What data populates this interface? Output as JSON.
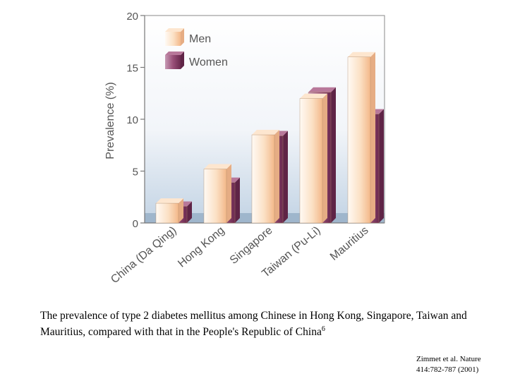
{
  "chart_data": {
    "type": "bar",
    "title": "",
    "xlabel": "",
    "ylabel": "Prevalence (%)",
    "ylim": [
      0,
      20
    ],
    "yticks": [
      0,
      5,
      10,
      15,
      20
    ],
    "categories": [
      "China (Da Qing)",
      "Hong Kong",
      "Singapore",
      "Taiwan (Pu-Li)",
      "Mauritius"
    ],
    "series": [
      {
        "name": "Men",
        "values": [
          1.9,
          5.2,
          8.5,
          12.0,
          16.0
        ],
        "color": "#f6c79a"
      },
      {
        "name": "Women",
        "values": [
          1.6,
          3.9,
          8.4,
          12.6,
          10.5
        ],
        "color": "#8b3e68"
      }
    ],
    "legend_position": "top-left",
    "grid": false
  },
  "caption": {
    "text": "The prevalence of type 2 diabetes mellitus among Chinese in Hong Kong, Singapore, Taiwan and Mauritius, compared with that in the People's Republic of China",
    "superscript": "6"
  },
  "citation": {
    "line1": "Zimmet et al.  Nature",
    "line2": "414:782-787 (2001)"
  }
}
